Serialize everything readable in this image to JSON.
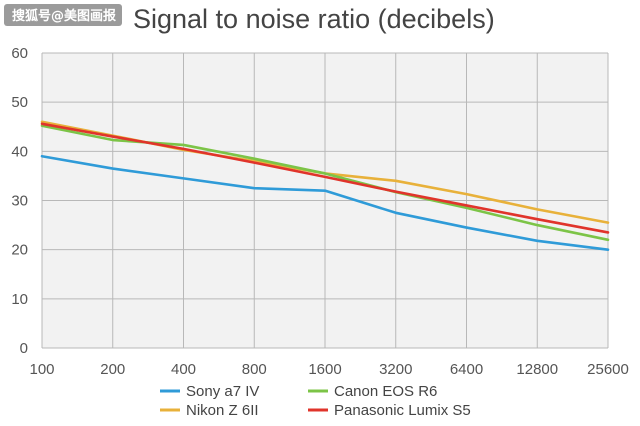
{
  "watermark": "搜狐号@美图画报",
  "chart_data": {
    "type": "line",
    "title": "Signal to noise ratio (decibels)",
    "xlabel": "",
    "ylabel": "",
    "categories": [
      "100",
      "200",
      "400",
      "800",
      "1600",
      "3200",
      "6400",
      "12800",
      "25600"
    ],
    "ylim": [
      0,
      60
    ],
    "yticks": [
      0,
      10,
      20,
      30,
      40,
      50,
      60
    ],
    "grid": true,
    "legend_position": "bottom",
    "series": [
      {
        "name": "Sony a7 IV",
        "color": "#2f9bd8",
        "values": [
          39,
          36.5,
          34.5,
          32.5,
          32,
          27.5,
          24.5,
          21.8,
          20
        ]
      },
      {
        "name": "Nikon Z 6II",
        "color": "#e8b13a",
        "values": [
          46,
          43.2,
          40.3,
          38,
          35.5,
          34,
          31.3,
          28.2,
          25.5
        ]
      },
      {
        "name": "Canon EOS R6",
        "color": "#7cc447",
        "values": [
          45.2,
          42.3,
          41.3,
          38.5,
          35.5,
          31.7,
          28.5,
          25,
          22
        ]
      },
      {
        "name": "Panasonic Lumix S5",
        "color": "#e0342b",
        "values": [
          45.6,
          43,
          40.5,
          37.7,
          34.8,
          31.8,
          29,
          26.2,
          23.5
        ]
      }
    ]
  }
}
